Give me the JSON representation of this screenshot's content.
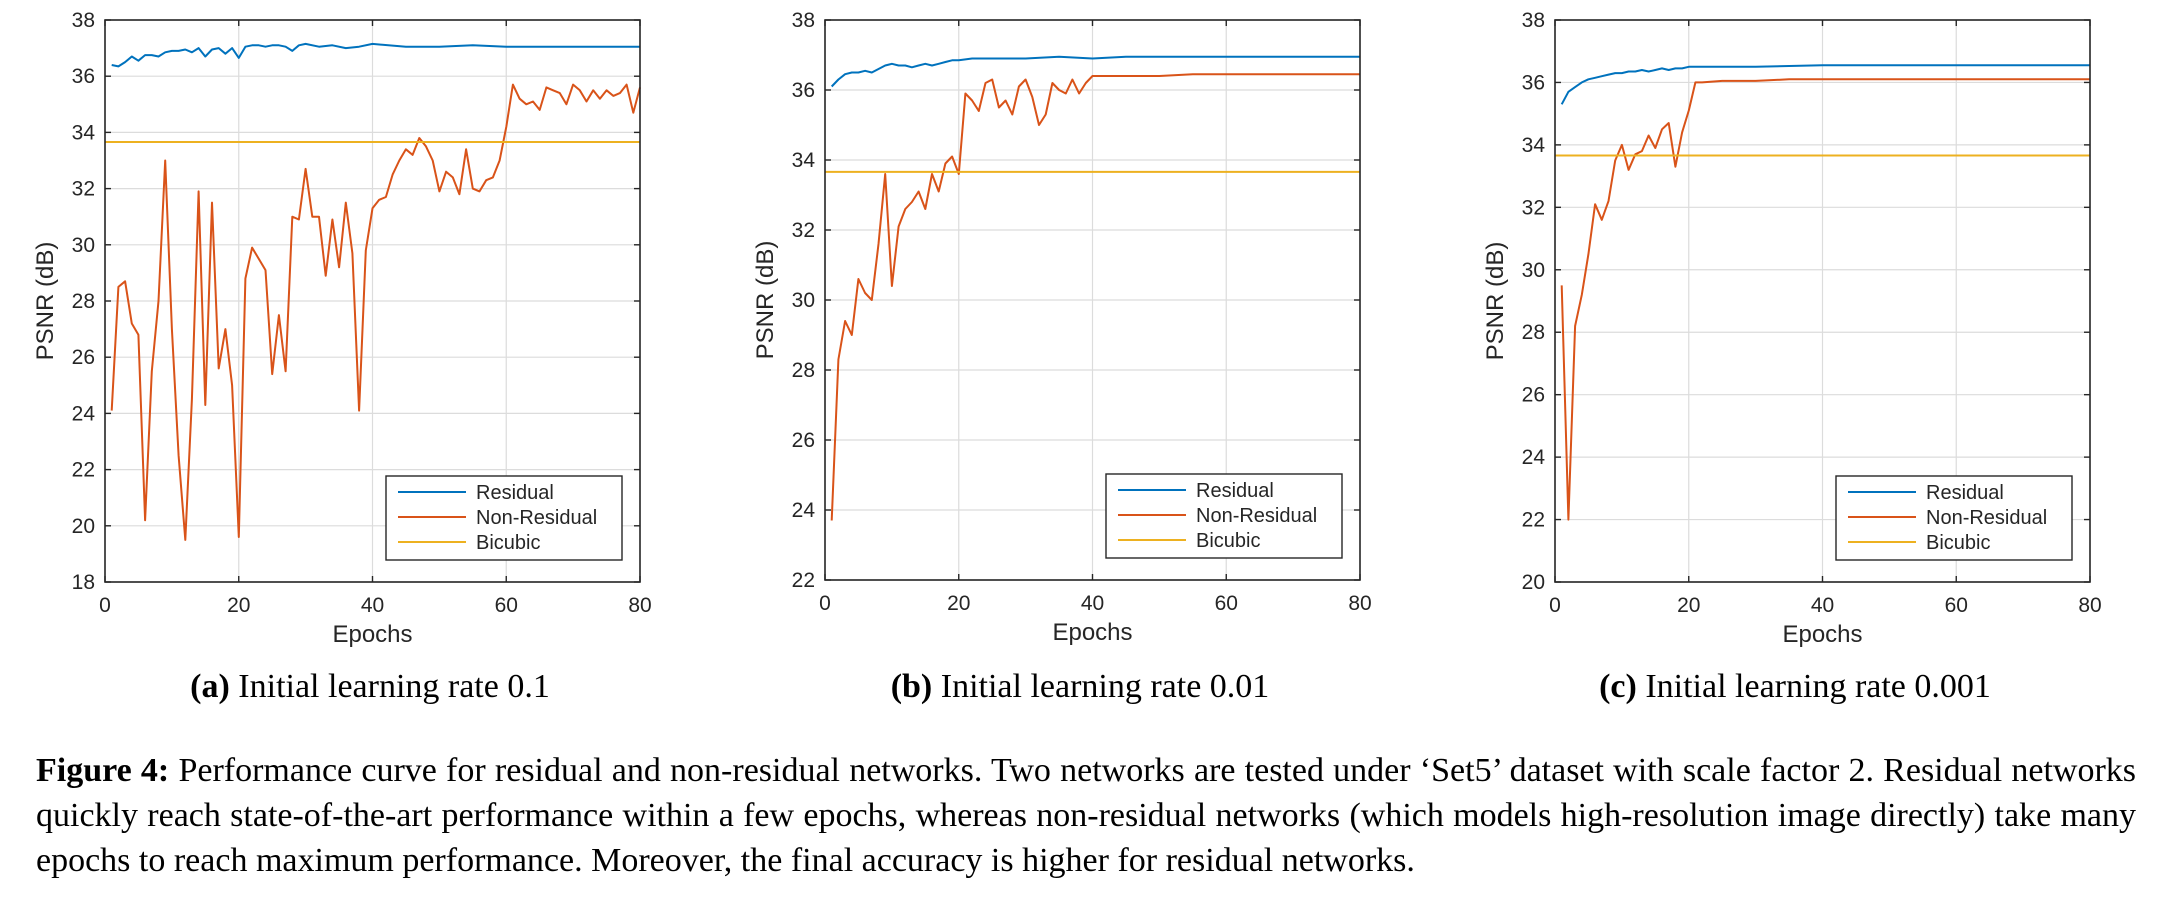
{
  "figure": {
    "caption_label": "Figure 4:",
    "caption_text": "Performance curve for residual and non-residual networks. Two networks are tested under ‘Set5’ dataset with scale factor 2. Residual networks quickly reach state-of-the-art performance within a few epochs, whereas non-residual networks (which models high-resolution image directly) take many epochs to reach maximum performance. Moreover, the final accuracy is higher for residual networks."
  },
  "colors": {
    "residual": "#0072bd",
    "non_residual": "#d95319",
    "bicubic": "#edb120",
    "grid": "#dcdcdc",
    "axis": "#262626"
  },
  "chart_data": [
    {
      "type": "line",
      "sub_label": "(a)",
      "title": "Initial learning rate 0.1",
      "xlabel": "Epochs",
      "ylabel": "PSNR (dB)",
      "xlim": [
        0,
        80
      ],
      "ylim": [
        18,
        38
      ],
      "xticks": [
        "0",
        "20",
        "40",
        "60",
        "80"
      ],
      "yticks": [
        "18",
        "20",
        "22",
        "24",
        "26",
        "28",
        "30",
        "32",
        "34",
        "36",
        "38"
      ],
      "grid": true,
      "legend": "bottom-right",
      "series": [
        {
          "name": "Residual",
          "color": "#0072bd",
          "x": [
            1,
            2,
            3,
            4,
            5,
            6,
            7,
            8,
            9,
            10,
            11,
            12,
            13,
            14,
            15,
            16,
            17,
            18,
            19,
            20,
            21,
            22,
            23,
            24,
            25,
            26,
            27,
            28,
            29,
            30,
            32,
            34,
            36,
            38,
            40,
            45,
            50,
            55,
            60,
            65,
            70,
            75,
            80
          ],
          "y": [
            36.4,
            36.35,
            36.5,
            36.7,
            36.55,
            36.75,
            36.75,
            36.7,
            36.85,
            36.9,
            36.9,
            36.95,
            36.85,
            37.0,
            36.7,
            36.95,
            37.0,
            36.8,
            37.0,
            36.65,
            37.05,
            37.1,
            37.1,
            37.05,
            37.1,
            37.1,
            37.05,
            36.9,
            37.1,
            37.15,
            37.05,
            37.1,
            37.0,
            37.05,
            37.15,
            37.05,
            37.05,
            37.1,
            37.05,
            37.05,
            37.05,
            37.05,
            37.05
          ]
        },
        {
          "name": "Non-Residual",
          "color": "#d95319",
          "x": [
            1,
            2,
            3,
            4,
            5,
            6,
            7,
            8,
            9,
            10,
            11,
            12,
            13,
            14,
            15,
            16,
            17,
            18,
            19,
            20,
            21,
            22,
            23,
            24,
            25,
            26,
            27,
            28,
            29,
            30,
            31,
            32,
            33,
            34,
            35,
            36,
            37,
            38,
            39,
            40,
            41,
            42,
            43,
            44,
            45,
            46,
            47,
            48,
            49,
            50,
            51,
            52,
            53,
            54,
            55,
            56,
            57,
            58,
            59,
            60,
            61,
            62,
            63,
            64,
            65,
            66,
            67,
            68,
            69,
            70,
            71,
            72,
            73,
            74,
            75,
            76,
            77,
            78,
            79,
            80
          ],
          "y": [
            24.1,
            28.5,
            28.7,
            27.2,
            26.8,
            20.2,
            25.5,
            28.0,
            33.0,
            27.0,
            22.5,
            19.5,
            24.5,
            31.9,
            24.3,
            31.5,
            25.6,
            27.0,
            25.0,
            19.6,
            28.8,
            29.9,
            29.5,
            29.1,
            25.4,
            27.5,
            25.5,
            31.0,
            30.9,
            32.7,
            31.0,
            31.0,
            28.9,
            30.9,
            29.2,
            31.5,
            29.7,
            24.1,
            29.8,
            31.3,
            31.6,
            31.7,
            32.5,
            33.0,
            33.4,
            33.2,
            33.8,
            33.5,
            33.0,
            31.9,
            32.6,
            32.4,
            31.8,
            33.4,
            32.0,
            31.9,
            32.3,
            32.4,
            33.0,
            34.2,
            35.7,
            35.2,
            35.0,
            35.1,
            34.8,
            35.6,
            35.5,
            35.4,
            35.0,
            35.7,
            35.5,
            35.1,
            35.5,
            35.2,
            35.5,
            35.3,
            35.4,
            35.7,
            34.7,
            35.6
          ]
        },
        {
          "name": "Bicubic",
          "color": "#edb120",
          "x": [
            0,
            80
          ],
          "y": [
            33.66,
            33.66
          ]
        }
      ]
    },
    {
      "type": "line",
      "sub_label": "(b)",
      "title": "Initial learning rate 0.01",
      "xlabel": "Epochs",
      "ylabel": "PSNR (dB)",
      "xlim": [
        0,
        80
      ],
      "ylim": [
        22,
        38
      ],
      "xticks": [
        "0",
        "20",
        "40",
        "60",
        "80"
      ],
      "yticks": [
        "22",
        "24",
        "26",
        "28",
        "30",
        "32",
        "34",
        "36",
        "38"
      ],
      "grid": true,
      "legend": "bottom-right",
      "series": [
        {
          "name": "Residual",
          "color": "#0072bd",
          "x": [
            1,
            2,
            3,
            4,
            5,
            6,
            7,
            8,
            9,
            10,
            11,
            12,
            13,
            14,
            15,
            16,
            17,
            18,
            19,
            20,
            22,
            25,
            30,
            35,
            40,
            45,
            50,
            60,
            70,
            80
          ],
          "y": [
            36.1,
            36.3,
            36.45,
            36.5,
            36.5,
            36.55,
            36.5,
            36.6,
            36.7,
            36.75,
            36.7,
            36.7,
            36.65,
            36.7,
            36.75,
            36.7,
            36.75,
            36.8,
            36.85,
            36.85,
            36.9,
            36.9,
            36.9,
            36.95,
            36.9,
            36.95,
            36.95,
            36.95,
            36.95,
            36.95
          ]
        },
        {
          "name": "Non-Residual",
          "color": "#d95319",
          "x": [
            1,
            2,
            3,
            4,
            5,
            6,
            7,
            8,
            9,
            10,
            11,
            12,
            13,
            14,
            15,
            16,
            17,
            18,
            19,
            20,
            21,
            22,
            23,
            24,
            25,
            26,
            27,
            28,
            29,
            30,
            31,
            32,
            33,
            34,
            35,
            36,
            37,
            38,
            39,
            40,
            42,
            45,
            50,
            55,
            60,
            70,
            80
          ],
          "y": [
            23.7,
            28.3,
            29.4,
            29.0,
            30.6,
            30.2,
            30.0,
            31.6,
            33.6,
            30.4,
            32.1,
            32.6,
            32.8,
            33.1,
            32.6,
            33.6,
            33.1,
            33.9,
            34.1,
            33.6,
            35.9,
            35.7,
            35.4,
            36.2,
            36.3,
            35.5,
            35.7,
            35.3,
            36.1,
            36.3,
            35.8,
            35.0,
            35.3,
            36.2,
            36.0,
            35.9,
            36.3,
            35.9,
            36.2,
            36.4,
            36.4,
            36.4,
            36.4,
            36.45,
            36.45,
            36.45,
            36.45
          ]
        },
        {
          "name": "Bicubic",
          "color": "#edb120",
          "x": [
            0,
            80
          ],
          "y": [
            33.66,
            33.66
          ]
        }
      ]
    },
    {
      "type": "line",
      "sub_label": "(c)",
      "title": "Initial learning rate 0.001",
      "xlabel": "Epochs",
      "ylabel": "PSNR (dB)",
      "xlim": [
        0,
        80
      ],
      "ylim": [
        20,
        38
      ],
      "xticks": [
        "0",
        "20",
        "40",
        "60",
        "80"
      ],
      "yticks": [
        "20",
        "22",
        "24",
        "26",
        "28",
        "30",
        "32",
        "34",
        "36",
        "38"
      ],
      "grid": true,
      "legend": "bottom-right",
      "series": [
        {
          "name": "Residual",
          "color": "#0072bd",
          "x": [
            1,
            2,
            3,
            4,
            5,
            6,
            7,
            8,
            9,
            10,
            11,
            12,
            13,
            14,
            15,
            16,
            17,
            18,
            19,
            20,
            22,
            25,
            30,
            40,
            50,
            60,
            70,
            80
          ],
          "y": [
            35.3,
            35.7,
            35.85,
            36.0,
            36.1,
            36.15,
            36.2,
            36.25,
            36.3,
            36.3,
            36.35,
            36.35,
            36.4,
            36.35,
            36.4,
            36.45,
            36.4,
            36.45,
            36.45,
            36.5,
            36.5,
            36.5,
            36.5,
            36.55,
            36.55,
            36.55,
            36.55,
            36.55
          ]
        },
        {
          "name": "Non-Residual",
          "color": "#d95319",
          "x": [
            1,
            2,
            3,
            4,
            5,
            6,
            7,
            8,
            9,
            10,
            11,
            12,
            13,
            14,
            15,
            16,
            17,
            18,
            19,
            20,
            21,
            22,
            25,
            30,
            35,
            40,
            50,
            60,
            70,
            80
          ],
          "y": [
            29.5,
            22.0,
            28.2,
            29.2,
            30.5,
            32.1,
            31.6,
            32.2,
            33.5,
            34.0,
            33.2,
            33.7,
            33.8,
            34.3,
            33.9,
            34.5,
            34.7,
            33.3,
            34.4,
            35.1,
            36.0,
            36.0,
            36.05,
            36.05,
            36.1,
            36.1,
            36.1,
            36.1,
            36.1,
            36.1
          ]
        },
        {
          "name": "Bicubic",
          "color": "#edb120",
          "x": [
            0,
            80
          ],
          "y": [
            33.66,
            33.66
          ]
        }
      ]
    }
  ]
}
